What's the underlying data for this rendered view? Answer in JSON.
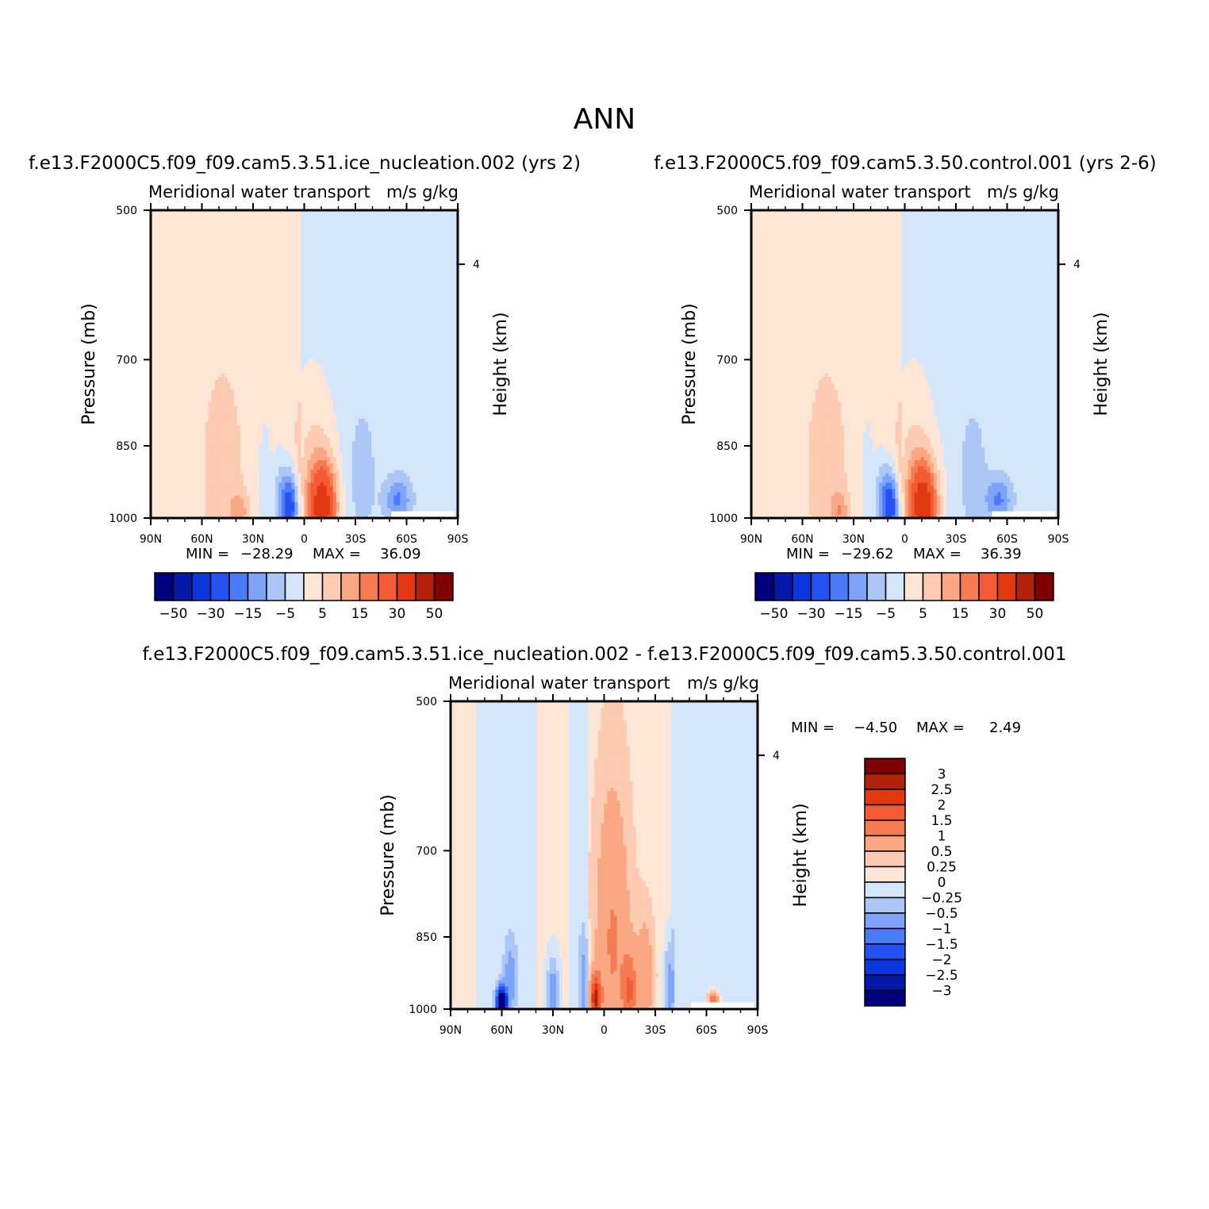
{
  "title": "ANN",
  "colors": {
    "levels": [
      "#00007f",
      "#0519a8",
      "#0b36db",
      "#2552f2",
      "#4a7bf8",
      "#7ea4f8",
      "#acc6f6",
      "#d5e6fb",
      "#fde6d6",
      "#fccbb2",
      "#f9a883",
      "#f57c52",
      "#f25b35",
      "#e33912",
      "#b2210a",
      "#7f0000"
    ],
    "frame": "#000000"
  },
  "panels": [
    {
      "case_title": "f.e13.F2000C5.f09_f09.cam5.3.51.ice_nucleation.002 (yrs 2)",
      "var_title": "Meridional water transport",
      "units": "m/s g/kg",
      "ylabel": "Pressure (mb)",
      "ylabel_right": "Height (km)",
      "stats": {
        "min_label": "MIN =",
        "min": "-28.29",
        "max_label": "MAX =",
        "max": "36.09"
      }
    },
    {
      "case_title": "f.e13.F2000C5.f09_f09.cam5.3.50.control.001 (yrs 2-6)",
      "var_title": "Meridional water transport",
      "units": "m/s g/kg",
      "ylabel": "Pressure (mb)",
      "ylabel_right": "Height (km)",
      "stats": {
        "min_label": "MIN =",
        "min": "-29.62",
        "max_label": "MAX =",
        "max": "36.39"
      }
    },
    {
      "case_title": "f.e13.F2000C5.f09_f09.cam5.3.51.ice_nucleation.002 - f.e13.F2000C5.f09_f09.cam5.3.50.control.001",
      "var_title": "Meridional water transport",
      "units": "m/s g/kg",
      "ylabel": "Pressure (mb)",
      "ylabel_right": "Height (km)",
      "stats": {
        "min_label": "MIN =",
        "min": "-4.50",
        "max_label": "MAX =",
        "max": "2.49"
      }
    }
  ],
  "colorbar_top": {
    "orientation": "horizontal",
    "labels": [
      "-50",
      "-30",
      "-15",
      "-5",
      "5",
      "15",
      "30",
      "50"
    ]
  },
  "colorbar_diff": {
    "orientation": "vertical",
    "labels": [
      "3",
      "2.5",
      "2",
      "1.5",
      "1",
      "0.5",
      "0.25",
      "0",
      "-0.25",
      "-0.5",
      "-1",
      "-1.5",
      "-2",
      "-2.5",
      "-3"
    ]
  },
  "chart_data": [
    {
      "type": "heatmap",
      "title": "Meridional water transport",
      "units": "m/s g/kg",
      "xlabel": "",
      "ylabel": "Pressure (mb)",
      "ylabel_right": "Height (km)",
      "x_ticklabels": [
        "90N",
        "60N",
        "30N",
        "0",
        "30S",
        "60S",
        "90S"
      ],
      "x_ticks": [
        90,
        60,
        30,
        0,
        -30,
        -60,
        -90
      ],
      "xlim": [
        90,
        -90
      ],
      "y_ticklabels": [
        "500",
        "700",
        "850",
        "1000"
      ],
      "y_ticks": [
        500,
        700,
        850,
        1000
      ],
      "ylim": [
        1000,
        500
      ],
      "yscale": "log",
      "right_ticklabels": [
        "4"
      ],
      "right_ticks_km": [
        4
      ],
      "contour_levels": [
        -50,
        -40,
        -30,
        -20,
        -15,
        -10,
        -5,
        0,
        5,
        10,
        15,
        20,
        30,
        40,
        50
      ],
      "min": -28.29,
      "max": 36.09,
      "features": [
        {
          "lat": 48,
          "pres": 900,
          "value": 7,
          "wlat": 12,
          "wp": 190
        },
        {
          "lat": 38,
          "pres": 985,
          "value": 10,
          "wlat": 5,
          "wp": 40
        },
        {
          "lat": 23,
          "pres": 920,
          "value": -6,
          "wlat": 3,
          "wp": 110
        },
        {
          "lat": 8,
          "pres": 975,
          "value": -27,
          "wlat": 5,
          "wp": 75
        },
        {
          "lat": 14,
          "pres": 960,
          "value": -10,
          "wlat": 5,
          "wp": 90
        },
        {
          "lat": -11,
          "pres": 975,
          "value": 34,
          "wlat": 8,
          "wp": 90
        },
        {
          "lat": -5,
          "pres": 920,
          "value": 9,
          "wlat": 12,
          "wp": 180
        },
        {
          "lat": -34,
          "pres": 905,
          "value": -6,
          "wlat": 8,
          "wp": 130
        },
        {
          "lat": -55,
          "pres": 960,
          "value": -14,
          "wlat": 8,
          "wp": 50
        }
      ],
      "background": [
        {
          "lat_min": 2,
          "lat_max": 90,
          "value": 2
        },
        {
          "lat_min": -90,
          "lat_max": 2,
          "value": -2
        }
      ]
    },
    {
      "type": "heatmap",
      "title": "Meridional water transport",
      "units": "m/s g/kg",
      "xlabel": "",
      "ylabel": "Pressure (mb)",
      "ylabel_right": "Height (km)",
      "x_ticklabels": [
        "90N",
        "60N",
        "30N",
        "0",
        "30S",
        "60S",
        "90S"
      ],
      "x_ticks": [
        90,
        60,
        30,
        0,
        -30,
        -60,
        -90
      ],
      "xlim": [
        90,
        -90
      ],
      "y_ticklabels": [
        "500",
        "700",
        "850",
        "1000"
      ],
      "y_ticks": [
        500,
        700,
        850,
        1000
      ],
      "ylim": [
        1000,
        500
      ],
      "yscale": "log",
      "right_ticklabels": [
        "4"
      ],
      "right_ticks_km": [
        4
      ],
      "contour_levels": [
        -50,
        -40,
        -30,
        -20,
        -15,
        -10,
        -5,
        0,
        5,
        10,
        15,
        20,
        30,
        40,
        50
      ],
      "min": -29.62,
      "max": 36.39,
      "features": [
        {
          "lat": 46,
          "pres": 900,
          "value": 7,
          "wlat": 12,
          "wp": 190
        },
        {
          "lat": 38,
          "pres": 985,
          "value": 10,
          "wlat": 5,
          "wp": 40
        },
        {
          "lat": 22,
          "pres": 920,
          "value": -6,
          "wlat": 3,
          "wp": 110
        },
        {
          "lat": 8,
          "pres": 975,
          "value": -28,
          "wlat": 5,
          "wp": 75
        },
        {
          "lat": 14,
          "pres": 960,
          "value": -10,
          "wlat": 5,
          "wp": 90
        },
        {
          "lat": -11,
          "pres": 975,
          "value": 35,
          "wlat": 8,
          "wp": 90
        },
        {
          "lat": -5,
          "pres": 920,
          "value": 9,
          "wlat": 12,
          "wp": 180
        },
        {
          "lat": -40,
          "pres": 905,
          "value": -6,
          "wlat": 8,
          "wp": 130
        },
        {
          "lat": -55,
          "pres": 960,
          "value": -14,
          "wlat": 8,
          "wp": 50
        }
      ],
      "background": [
        {
          "lat_min": 2,
          "lat_max": 90,
          "value": 2
        },
        {
          "lat_min": -90,
          "lat_max": 2,
          "value": -2
        }
      ]
    },
    {
      "type": "heatmap",
      "title": "Meridional water transport",
      "units": "m/s g/kg",
      "xlabel": "",
      "ylabel": "Pressure (mb)",
      "ylabel_right": "Height (km)",
      "x_ticklabels": [
        "90N",
        "60N",
        "30N",
        "0",
        "30S",
        "60S",
        "90S"
      ],
      "x_ticks": [
        90,
        60,
        30,
        0,
        -30,
        -60,
        -90
      ],
      "xlim": [
        90,
        -90
      ],
      "y_ticklabels": [
        "500",
        "700",
        "850",
        "1000"
      ],
      "y_ticks": [
        500,
        700,
        850,
        1000
      ],
      "ylim": [
        1000,
        500
      ],
      "yscale": "log",
      "right_ticklabels": [
        "4"
      ],
      "right_ticks_km": [
        4
      ],
      "contour_levels": [
        -3,
        -2.5,
        -2,
        -1.5,
        -1,
        -0.5,
        -0.25,
        0,
        0.25,
        0.5,
        1,
        1.5,
        2,
        2.5,
        3
      ],
      "min": -4.5,
      "max": 2.49,
      "features": [
        {
          "lat": 60,
          "pres": 985,
          "value": -4.5,
          "wlat": 3,
          "wp": 30
        },
        {
          "lat": 55,
          "pres": 930,
          "value": -0.6,
          "wlat": 4,
          "wp": 80
        },
        {
          "lat": 30,
          "pres": 960,
          "value": -0.8,
          "wlat": 4,
          "wp": 80
        },
        {
          "lat": 12,
          "pres": 950,
          "value": -0.6,
          "wlat": 3,
          "wp": 120
        },
        {
          "lat": 5,
          "pres": 975,
          "value": 2.3,
          "wlat": 3,
          "wp": 50
        },
        {
          "lat": -5,
          "pres": 860,
          "value": 0.9,
          "wlat": 10,
          "wp": 260
        },
        {
          "lat": -15,
          "pres": 960,
          "value": 1.2,
          "wlat": 4,
          "wp": 80
        },
        {
          "lat": -24,
          "pres": 930,
          "value": 0.7,
          "wlat": 5,
          "wp": 120
        },
        {
          "lat": -38,
          "pres": 950,
          "value": -0.8,
          "wlat": 3,
          "wp": 110
        },
        {
          "lat": -64,
          "pres": 980,
          "value": 1.6,
          "wlat": 3,
          "wp": 20
        },
        {
          "lat": -75,
          "pres": 700,
          "value": -0.12,
          "wlat": 12,
          "wp": 400
        }
      ],
      "background": [
        {
          "lat_min": 75,
          "lat_max": 90,
          "value": 0.1
        },
        {
          "lat_min": 40,
          "lat_max": 75,
          "value": -0.1
        },
        {
          "lat_min": 20,
          "lat_max": 40,
          "value": 0.1
        },
        {
          "lat_min": 10,
          "lat_max": 20,
          "value": -0.1
        },
        {
          "lat_min": -40,
          "lat_max": 10,
          "value": 0.15
        },
        {
          "lat_min": -90,
          "lat_max": -40,
          "value": -0.1
        }
      ]
    }
  ]
}
